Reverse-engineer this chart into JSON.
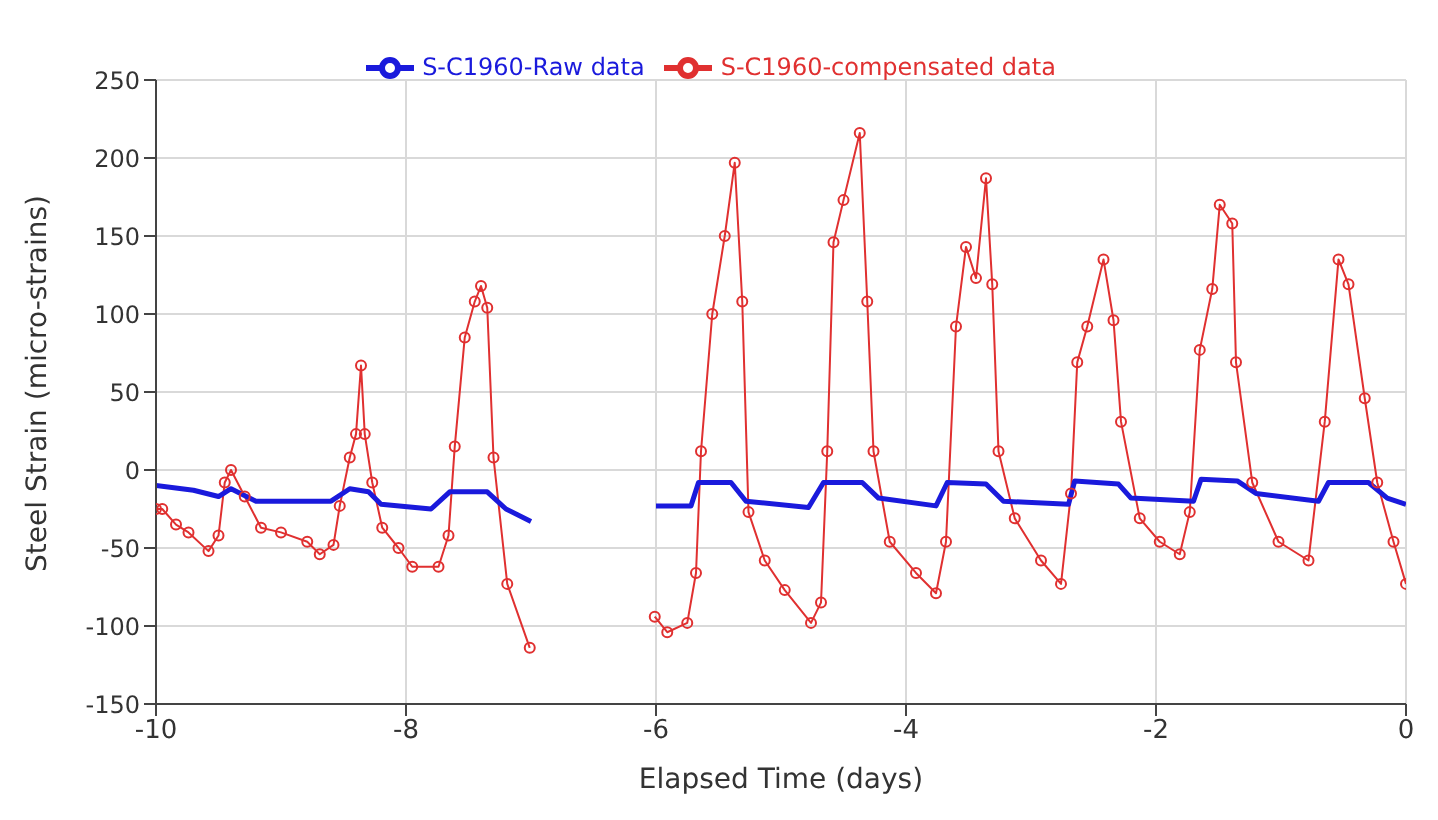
{
  "chart_data": {
    "type": "line",
    "xlabel": "Elapsed Time (days)",
    "ylabel": "Steel Strain (micro-strains)",
    "xlim": [
      -10,
      0
    ],
    "xticks": [
      -10,
      -8,
      -6,
      -4,
      -2,
      0
    ],
    "ylim": [
      -150,
      250
    ],
    "yticks": [
      -150,
      -100,
      -50,
      0,
      50,
      100,
      150,
      200,
      250
    ],
    "grid": true,
    "legend": "top",
    "line_style": "solid",
    "series": [
      {
        "name": "S-C1960-compensated data",
        "color": "#e03030",
        "marker": "circle",
        "x": [
          -10,
          -9.95,
          -9.84,
          -9.74,
          -9.58,
          -9.5,
          -9.45,
          -9.4,
          -9.29,
          -9.16,
          -9,
          -8.79,
          -8.69,
          -8.58,
          -8.53,
          -8.45,
          -8.4,
          -8.36,
          -8.33,
          -8.27,
          -8.19,
          -8.06,
          -7.95,
          -7.74,
          -7.66,
          -7.61,
          -7.53,
          -7.45,
          -7.4,
          -7.35,
          -7.3,
          -7.19,
          -7.01,
          -6.5,
          -6.01,
          -5.91,
          -5.75,
          -5.68,
          -5.64,
          -5.55,
          -5.45,
          -5.37,
          -5.31,
          -5.26,
          -5.13,
          -4.97,
          -4.76,
          -4.68,
          -4.63,
          -4.58,
          -4.5,
          -4.37,
          -4.31,
          -4.26,
          -4.13,
          -3.92,
          -3.76,
          -3.68,
          -3.6,
          -3.52,
          -3.44,
          -3.36,
          -3.31,
          -3.26,
          -3.13,
          -2.92,
          -2.76,
          -2.68,
          -2.63,
          -2.55,
          -2.42,
          -2.34,
          -2.28,
          -2.13,
          -1.97,
          -1.81,
          -1.73,
          -1.65,
          -1.55,
          -1.49,
          -1.39,
          -1.36,
          -1.23,
          -1.02,
          -0.78,
          -0.65,
          -0.54,
          -0.46,
          -0.33,
          -0.23,
          -0.1,
          0
        ],
        "values": [
          -25,
          -25,
          -35,
          -40,
          -52,
          -42,
          -8,
          0,
          -17,
          -37,
          -40,
          -46,
          -54,
          -48,
          -23,
          8,
          23,
          67,
          23,
          -8,
          -37,
          -50,
          -62,
          -62,
          -42,
          15,
          85,
          108,
          118,
          104,
          8,
          -73,
          -114,
          null,
          -94,
          -104,
          -98,
          -66,
          12,
          100,
          150,
          197,
          108,
          -27,
          -58,
          -77,
          -98,
          -85,
          12,
          146,
          173,
          216,
          108,
          12,
          -46,
          -66,
          -79,
          -46,
          92,
          143,
          123,
          187,
          119,
          12,
          -31,
          -58,
          -73,
          -15,
          69,
          92,
          135,
          96,
          31,
          -31,
          -46,
          -54,
          -27,
          77,
          116,
          170,
          158,
          69,
          -8,
          -46,
          -58,
          31,
          135,
          119,
          46,
          -8,
          -46,
          -73
        ]
      },
      {
        "name": "S-C1960-Raw data",
        "color": "#1a1adc",
        "marker": "none",
        "x": [
          -10,
          -9.7,
          -9.5,
          -9.4,
          -9.2,
          -8.6,
          -8.45,
          -8.3,
          -8.2,
          -7.8,
          -7.65,
          -7.35,
          -7.2,
          -7,
          -6.5,
          -6,
          -5.72,
          -5.66,
          -5.4,
          -5.28,
          -4.78,
          -4.66,
          -4.35,
          -4.22,
          -3.76,
          -3.67,
          -3.36,
          -3.22,
          -2.7,
          -2.65,
          -2.3,
          -2.2,
          -1.7,
          -1.64,
          -1.35,
          -1.2,
          -0.7,
          -0.62,
          -0.3,
          -0.15,
          0
        ],
        "values": [
          -10,
          -13,
          -17,
          -12,
          -20,
          -20,
          -12,
          -14,
          -22,
          -25,
          -14,
          -14,
          -25,
          -33,
          null,
          -23,
          -23,
          -8,
          -8,
          -20,
          -24,
          -8,
          -8,
          -18,
          -23,
          -8,
          -9,
          -20,
          -22,
          -7,
          -9,
          -18,
          -20,
          -6,
          -7,
          -15,
          -20,
          -8,
          -8,
          -18,
          -22
        ]
      }
    ]
  }
}
